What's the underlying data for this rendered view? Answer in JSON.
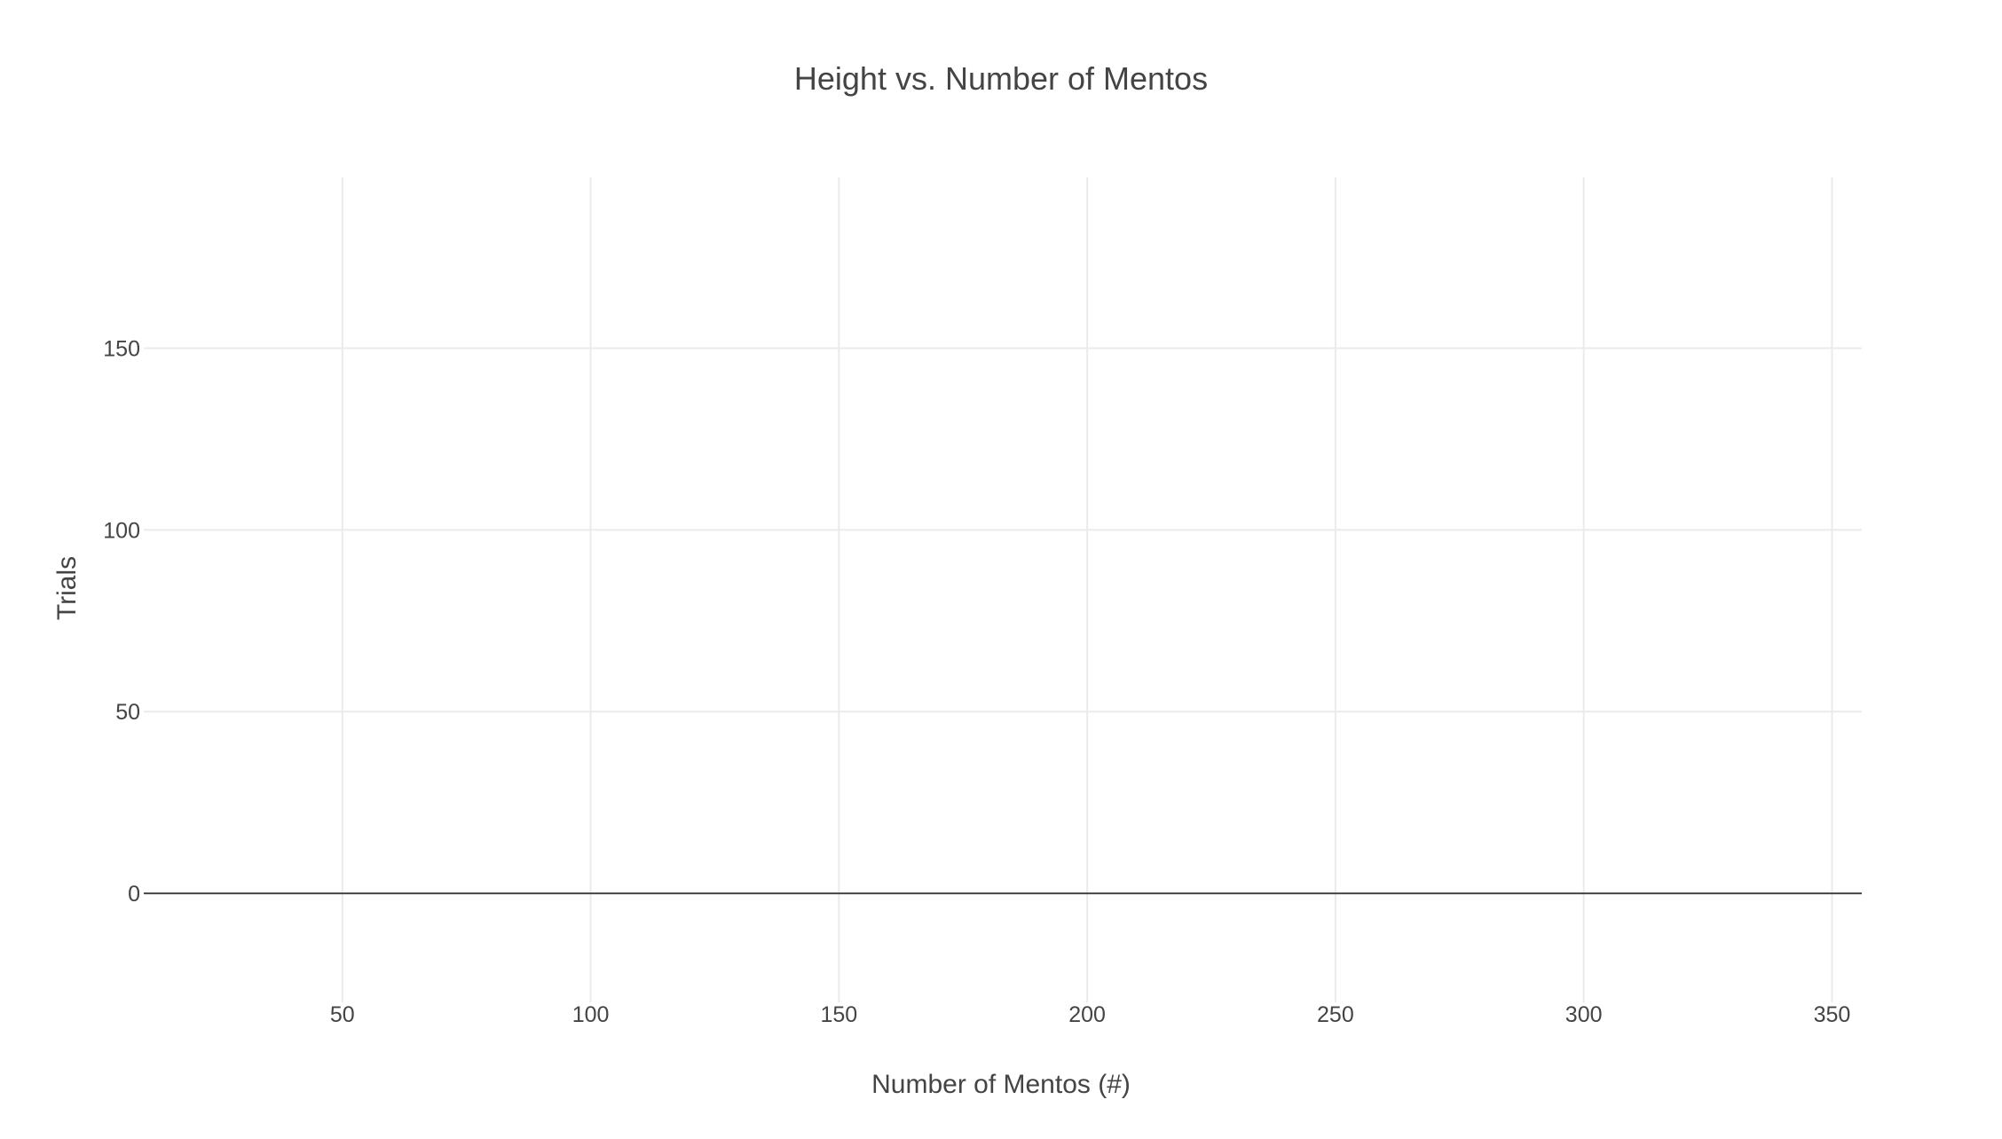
{
  "chart_data": {
    "type": "scatter",
    "title": "Height vs. Number of Mentos",
    "xlabel": "Number of Mentos (#)",
    "ylabel": "Trials",
    "xlim": [
      10,
      356
    ],
    "ylim": [
      -30,
      197
    ],
    "x_ticks": [
      50,
      100,
      150,
      200,
      250,
      300,
      350
    ],
    "y_ticks": [
      0,
      50,
      100,
      150
    ],
    "grid": true,
    "zero_line": true,
    "series": []
  },
  "colors": {
    "grid": "#ebebeb",
    "zero_line": "#444444",
    "text": "#444444",
    "background": "#ffffff"
  }
}
